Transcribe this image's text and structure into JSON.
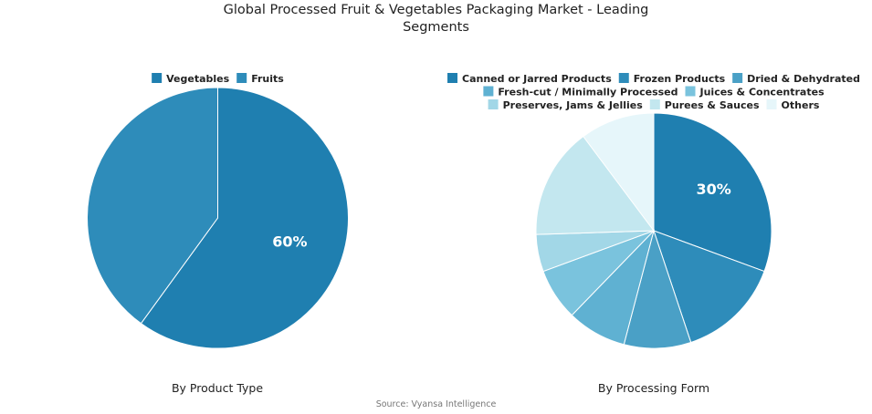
{
  "title_line1": "Global Processed Fruit & Vegetables Packaging Market - Leading",
  "title_line2": "Segments",
  "source": "Source: Vyansa Intelligence",
  "chart_data": [
    {
      "type": "pie",
      "caption": "By Product Type",
      "categories": [
        "Vegetables",
        "Fruits"
      ],
      "values": [
        60,
        40
      ],
      "colors": [
        "#1f7fb0",
        "#2e8cba"
      ],
      "label_shown": "60%",
      "legend_placement": "top"
    },
    {
      "type": "pie",
      "caption": "By Processing Form",
      "categories": [
        "Canned or Jarred Products",
        "Frozen Products",
        "Dried & Dehydrated",
        "Fresh-cut / Minimally Processed",
        "Juices & Concentrates",
        "Preserves, Jams & Jellies",
        "Purees & Sauces",
        "Others"
      ],
      "values": [
        30,
        14,
        9,
        8,
        7,
        5,
        15,
        10
      ],
      "colors": [
        "#1f7fb0",
        "#2e8cba",
        "#4aa0c6",
        "#5fb1d2",
        "#7ac3dd",
        "#a2d7e7",
        "#c3e7ef",
        "#e6f6fa"
      ],
      "label_shown": "30%",
      "legend_placement": "top"
    }
  ]
}
